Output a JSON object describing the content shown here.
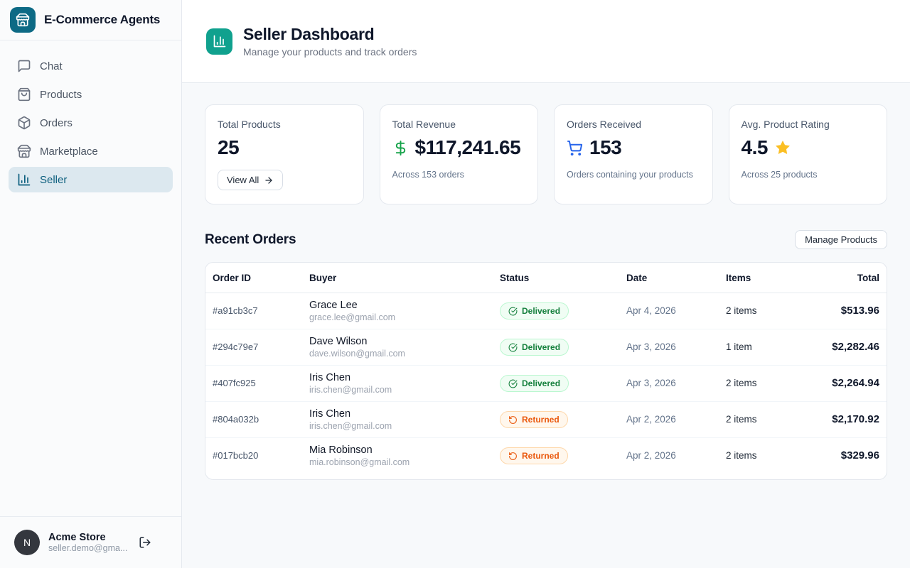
{
  "app": {
    "title": "E-Commerce Agents",
    "logo_icon": "storefront-icon"
  },
  "sidebar": {
    "items": [
      {
        "label": "Chat",
        "icon": "chat-icon",
        "active": false
      },
      {
        "label": "Products",
        "icon": "products-icon",
        "active": false
      },
      {
        "label": "Orders",
        "icon": "orders-icon",
        "active": false
      },
      {
        "label": "Marketplace",
        "icon": "marketplace-icon",
        "active": false
      },
      {
        "label": "Seller",
        "icon": "seller-icon",
        "active": true
      }
    ],
    "user": {
      "name": "Acme Store",
      "email": "seller.demo@gma...",
      "avatar_letter": "N",
      "logout_icon": "logout-icon"
    }
  },
  "header": {
    "icon": "bar-chart-icon",
    "title": "Seller Dashboard",
    "subtitle": "Manage your products and track orders"
  },
  "stats": {
    "total_products": {
      "label": "Total Products",
      "value": "25",
      "button_label": "View All",
      "button_icon": "arrow-right-icon"
    },
    "total_revenue": {
      "label": "Total Revenue",
      "icon": "dollar-icon",
      "value": "$117,241.65",
      "subtext": "Across 153 orders"
    },
    "orders_received": {
      "label": "Orders Received",
      "icon": "cart-icon",
      "value": "153",
      "subtext": "Orders containing your products"
    },
    "avg_rating": {
      "label": "Avg. Product Rating",
      "value": "4.5",
      "icon": "star-icon",
      "subtext": "Across 25 products"
    }
  },
  "orders": {
    "section_title": "Recent Orders",
    "manage_button_label": "Manage Products",
    "columns": [
      "Order ID",
      "Buyer",
      "Status",
      "Date",
      "Items",
      "Total"
    ],
    "status_icons": {
      "Delivered": "check-circle-icon",
      "Returned": "rotate-ccw-icon"
    },
    "rows": [
      {
        "id": "#a91cb3c7",
        "buyer": "Grace Lee",
        "email": "grace.lee@gmail.com",
        "status": "Delivered",
        "date": "Apr 4, 2026",
        "items": "2 items",
        "total": "$513.96"
      },
      {
        "id": "#294c79e7",
        "buyer": "Dave Wilson",
        "email": "dave.wilson@gmail.com",
        "status": "Delivered",
        "date": "Apr 3, 2026",
        "items": "1 item",
        "total": "$2,282.46"
      },
      {
        "id": "#407fc925",
        "buyer": "Iris Chen",
        "email": "iris.chen@gmail.com",
        "status": "Delivered",
        "date": "Apr 3, 2026",
        "items": "2 items",
        "total": "$2,264.94"
      },
      {
        "id": "#804a032b",
        "buyer": "Iris Chen",
        "email": "iris.chen@gmail.com",
        "status": "Returned",
        "date": "Apr 2, 2026",
        "items": "2 items",
        "total": "$2,170.92"
      },
      {
        "id": "#017bcb20",
        "buyer": "Mia Robinson",
        "email": "mia.robinson@gmail.com",
        "status": "Returned",
        "date": "Apr 2, 2026",
        "items": "2 items",
        "total": "$329.96"
      }
    ]
  },
  "colors": {
    "sidebar_logo_teal": "#0d6a85",
    "header_icon_teal": "#10a18e",
    "active_item_bg": "#dce8ef",
    "active_item_text": "#0c5f7e",
    "success_green": "#15803d",
    "returned_orange": "#ea580c",
    "cart_blue": "#2563eb",
    "star_amber": "#fbbf24"
  }
}
